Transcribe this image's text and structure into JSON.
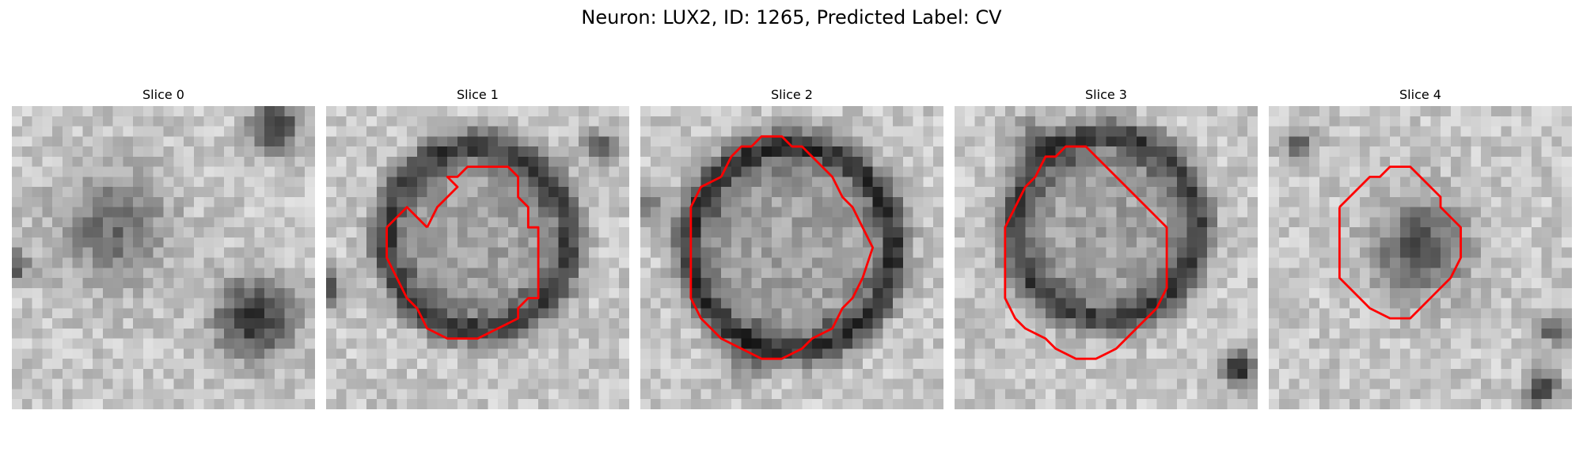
{
  "figure": {
    "title": "Neuron: LUX2, ID: 1265, Predicted Label: CV"
  },
  "colors": {
    "contour": "#ff0000",
    "background": "#ffffff"
  },
  "slices": [
    {
      "label": "Slice 0",
      "has_contour": false
    },
    {
      "label": "Slice 1",
      "has_contour": true
    },
    {
      "label": "Slice 2",
      "has_contour": true
    },
    {
      "label": "Slice 3",
      "has_contour": true
    },
    {
      "label": "Slice 4",
      "has_contour": true
    }
  ]
}
